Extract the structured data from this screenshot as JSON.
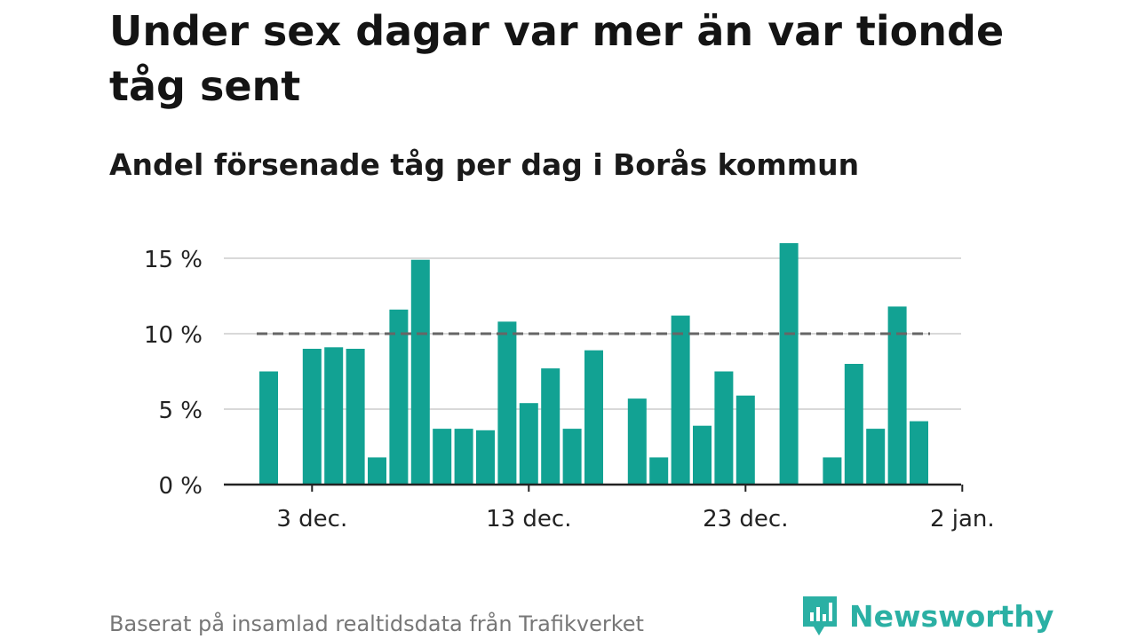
{
  "title": "Under sex dagar var mer än var tionde tåg sent",
  "subtitle": "Andel försenade tåg per dag i Borås kommun",
  "footer": "Baserat på insamlad realtidsdata från Trafikverket",
  "brand": {
    "name": "Newsworthy",
    "color": "#2bb0a4",
    "icon": "newsworthy-logo-icon"
  },
  "colors": {
    "bar": "#12a293",
    "grid": "#d9d9d9",
    "axis": "#222222",
    "reference": "#666666"
  },
  "chart_data": {
    "type": "bar",
    "title": "",
    "xlabel": "",
    "ylabel": "",
    "x": [
      "2023-12-01",
      "2023-12-02",
      "2023-12-03",
      "2023-12-04",
      "2023-12-05",
      "2023-12-06",
      "2023-12-07",
      "2023-12-08",
      "2023-12-09",
      "2023-12-10",
      "2023-12-11",
      "2023-12-12",
      "2023-12-13",
      "2023-12-14",
      "2023-12-15",
      "2023-12-16",
      "2023-12-17",
      "2023-12-18",
      "2023-12-19",
      "2023-12-20",
      "2023-12-21",
      "2023-12-22",
      "2023-12-23",
      "2023-12-24",
      "2023-12-25",
      "2023-12-26",
      "2023-12-27",
      "2023-12-28",
      "2023-12-29",
      "2023-12-30",
      "2023-12-31",
      "2024-01-01"
    ],
    "values": [
      7.5,
      null,
      9.0,
      9.1,
      9.0,
      1.8,
      11.6,
      14.9,
      3.7,
      3.7,
      3.6,
      10.8,
      5.4,
      7.7,
      3.7,
      8.9,
      null,
      5.7,
      1.8,
      11.2,
      3.9,
      7.5,
      5.9,
      null,
      16.0,
      null,
      1.8,
      8.0,
      3.7,
      11.8,
      4.2,
      null
    ],
    "reference_line": {
      "value": 10,
      "style": "dashed"
    },
    "ylim": [
      0,
      16
    ],
    "yticks": [
      0,
      5,
      10,
      15
    ],
    "ytick_labels": [
      "0 %",
      "5 %",
      "10 %",
      "15 %"
    ],
    "xticks": [
      {
        "date": "2023-12-03",
        "label": "3 dec."
      },
      {
        "date": "2023-12-13",
        "label": "13 dec."
      },
      {
        "date": "2023-12-23",
        "label": "23 dec."
      },
      {
        "date": "2024-01-02",
        "label": "2 jan."
      }
    ],
    "grid": true,
    "legend": "none"
  }
}
